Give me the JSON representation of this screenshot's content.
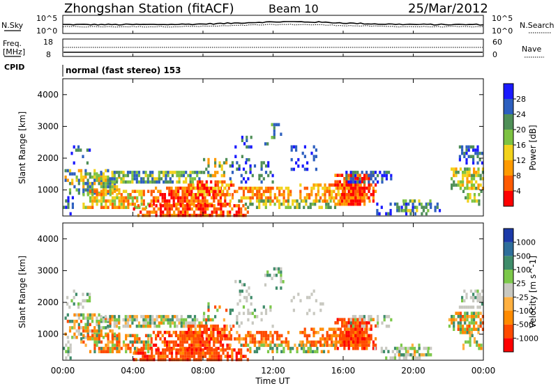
{
  "header": {
    "station": "Zhongshan Station (fitACF)",
    "beam": "Beam 10",
    "date": "25/Mar/2012"
  },
  "top_panels": {
    "nsky_label": "N.Sky",
    "nsearch_label": "N.Search",
    "noise_tick_high": "10^5",
    "noise_tick_low": "10^0",
    "freq_label_1": "Freq.",
    "freq_label_2": "[MHz]",
    "freq_ticks": [
      "18",
      "8"
    ],
    "nave_label": "Nave",
    "nave_ticks": [
      "60",
      "0"
    ],
    "cpid_label": "CPID",
    "cpid_text": "normal (fast stereo) 153"
  },
  "chart_data": [
    {
      "type": "heatmap",
      "title": "",
      "xlabel": "Time UT",
      "ylabel": "Slant Range [km]",
      "xlim_hours": [
        0,
        24
      ],
      "ylim_km": [
        180,
        4500
      ],
      "x_tick_labels": [
        "00:00",
        "04:00",
        "08:00",
        "12:00",
        "16:00",
        "20:00",
        "00:00"
      ],
      "y_ticks": [
        1000,
        2000,
        3000,
        4000
      ],
      "colorbar": {
        "label": "Power [dB]",
        "ticks": [
          "4",
          "8",
          "12",
          "16",
          "20",
          "24",
          "28"
        ],
        "colors": [
          "#1a1aff",
          "#2d5fbf",
          "#4f8f57",
          "#7dc242",
          "#f2d21b",
          "#ff9a00",
          "#ff5a00",
          "#ff0000"
        ]
      }
    },
    {
      "type": "heatmap",
      "title": "",
      "xlabel": "Time UT",
      "ylabel": "Slant Range [km]",
      "xlim_hours": [
        0,
        24
      ],
      "ylim_km": [
        180,
        4500
      ],
      "x_tick_labels": [
        "00:00",
        "04:00",
        "08:00",
        "12:00",
        "16:00",
        "20:00",
        "00:00"
      ],
      "y_ticks": [
        1000,
        2000,
        3000,
        4000
      ],
      "colorbar": {
        "label": "Velocity [m s^-1]",
        "ticks": [
          "1000",
          "500",
          "100",
          "25",
          "-25",
          "-100",
          "-500",
          "-1000"
        ],
        "colors": [
          "#1c3aa8",
          "#2e6e9a",
          "#3f8c6a",
          "#7cc84a",
          "#c8c8c0",
          "#ffb040",
          "#ff8a00",
          "#ff4a00",
          "#ff0000"
        ]
      }
    }
  ]
}
